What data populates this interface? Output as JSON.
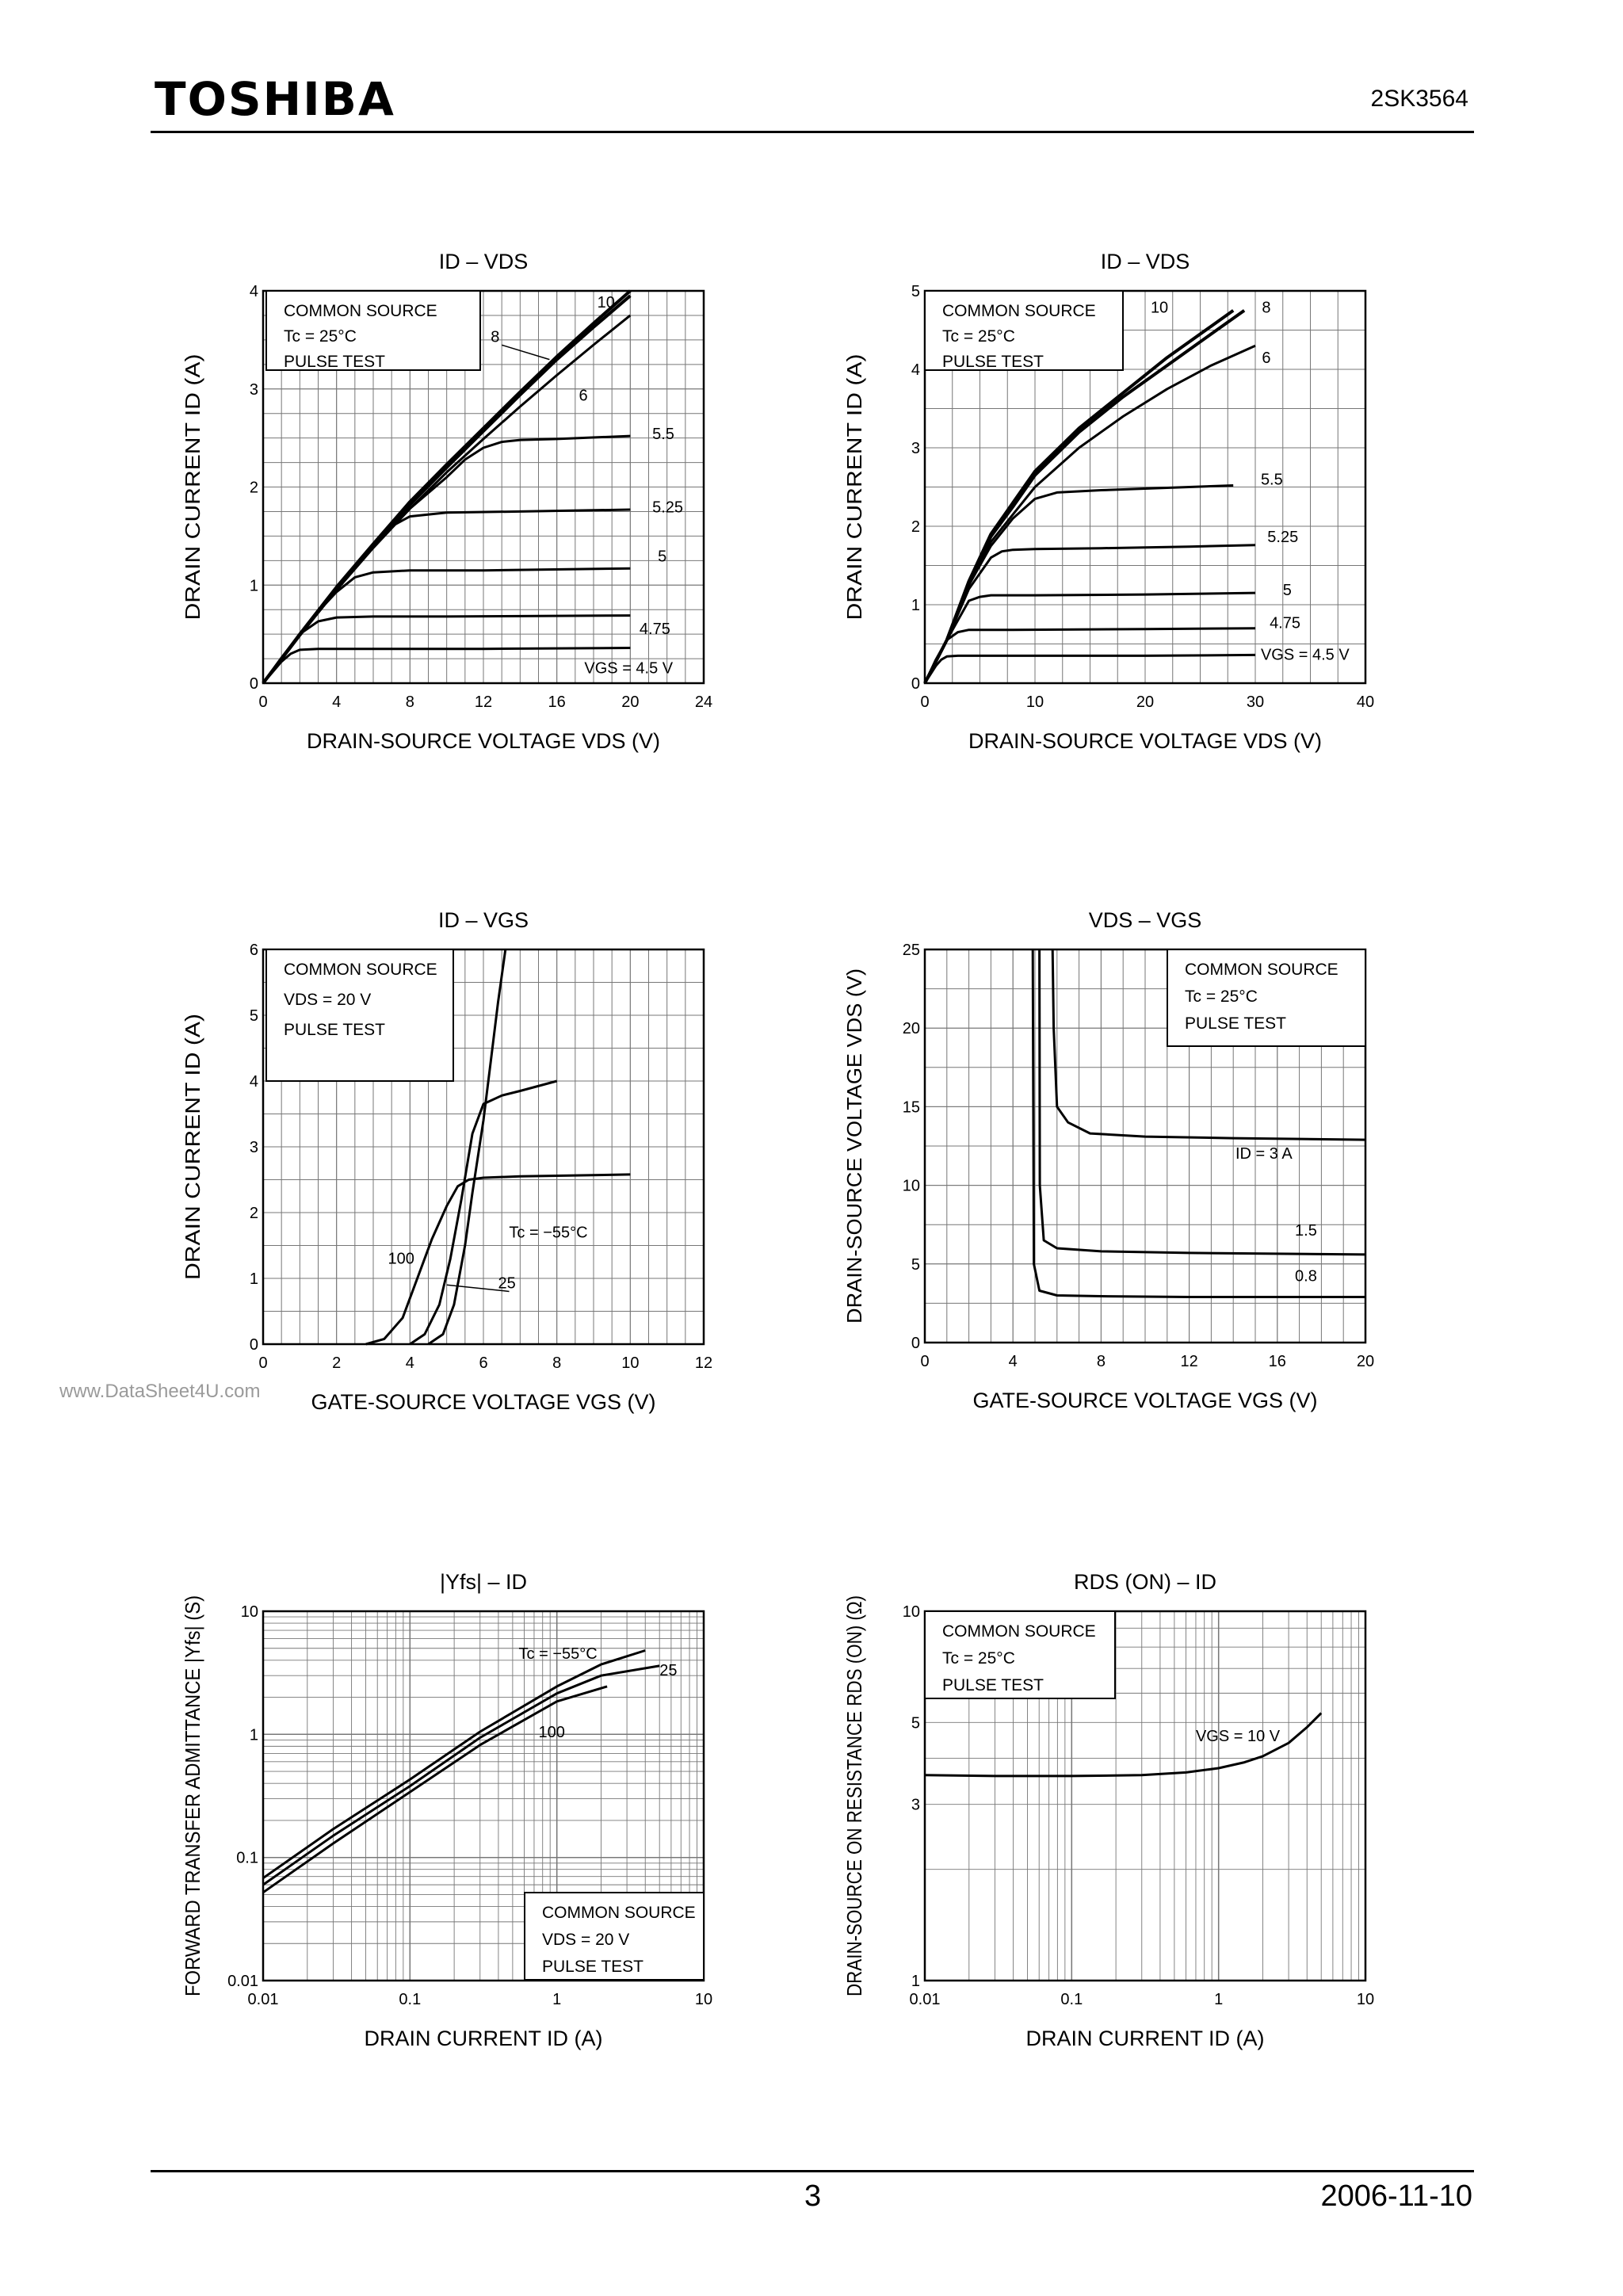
{
  "header": {
    "brand": "TOSHIBA",
    "part_number": "2SK3564"
  },
  "footer": {
    "page_number": "3",
    "date": "2006-11-10"
  },
  "watermark": "www.DataSheet4U.com",
  "chart_data": [
    {
      "type": "line",
      "title": "ID – VDS",
      "xlabel": "DRAIN-SOURCE VOLTAGE   VDS   (V)",
      "ylabel": "DRAIN CURRENT   ID   (A)",
      "xlim": [
        0,
        24
      ],
      "ylim": [
        0,
        4
      ],
      "xticks": [
        0,
        4,
        8,
        12,
        16,
        20,
        24
      ],
      "yticks": [
        0,
        1,
        2,
        3,
        4
      ],
      "conditions": [
        "COMMON SOURCE",
        "Tc = 25°C",
        "PULSE TEST"
      ],
      "series": [
        {
          "name": "10",
          "x": [
            0,
            2,
            4,
            6,
            8,
            10,
            12,
            14,
            16,
            18,
            20
          ],
          "y": [
            0,
            0.5,
            0.98,
            1.42,
            1.85,
            2.23,
            2.6,
            2.97,
            3.33,
            3.67,
            4.0
          ]
        },
        {
          "name": "8",
          "x": [
            0,
            2,
            4,
            6,
            8,
            10,
            12,
            14,
            16,
            18,
            20
          ],
          "y": [
            0,
            0.49,
            0.96,
            1.4,
            1.82,
            2.2,
            2.57,
            2.94,
            3.3,
            3.63,
            3.95
          ]
        },
        {
          "name": "6",
          "x": [
            0,
            2,
            4,
            6,
            8,
            10,
            12,
            14,
            16,
            18,
            20
          ],
          "y": [
            0,
            0.49,
            0.95,
            1.38,
            1.78,
            2.15,
            2.49,
            2.82,
            3.14,
            3.45,
            3.75
          ]
        },
        {
          "name": "5.5",
          "x": [
            0,
            2,
            4,
            6,
            8,
            10,
            11,
            12,
            13,
            14,
            16,
            20
          ],
          "y": [
            0,
            0.49,
            0.95,
            1.38,
            1.78,
            2.1,
            2.28,
            2.4,
            2.46,
            2.48,
            2.49,
            2.52
          ]
        },
        {
          "name": "5.25",
          "x": [
            0,
            2,
            4,
            5,
            6,
            7,
            8,
            10,
            14,
            20
          ],
          "y": [
            0,
            0.49,
            0.95,
            1.17,
            1.42,
            1.6,
            1.7,
            1.74,
            1.75,
            1.77
          ]
        },
        {
          "name": "5",
          "x": [
            0,
            2,
            3,
            4,
            5,
            6,
            8,
            12,
            20
          ],
          "y": [
            0,
            0.49,
            0.73,
            0.93,
            1.08,
            1.13,
            1.15,
            1.15,
            1.17
          ]
        },
        {
          "name": "4.75",
          "x": [
            0,
            1,
            2,
            3,
            4,
            6,
            10,
            20
          ],
          "y": [
            0,
            0.26,
            0.5,
            0.63,
            0.67,
            0.68,
            0.68,
            0.69
          ]
        },
        {
          "name": "VGS = 4.5 V",
          "x": [
            0,
            1,
            1.5,
            2,
            3,
            6,
            12,
            20
          ],
          "y": [
            0,
            0.22,
            0.3,
            0.34,
            0.35,
            0.35,
            0.35,
            0.36
          ]
        }
      ]
    },
    {
      "type": "line",
      "title": "ID – VDS",
      "xlabel": "DRAIN-SOURCE VOLTAGE   VDS   (V)",
      "ylabel": "DRAIN CURRENT   ID   (A)",
      "xlim": [
        0,
        40
      ],
      "ylim": [
        0,
        5
      ],
      "xticks": [
        0,
        10,
        20,
        30,
        40
      ],
      "yticks": [
        0,
        1,
        2,
        3,
        4,
        5
      ],
      "conditions": [
        "COMMON SOURCE",
        "Tc = 25°C",
        "PULSE TEST"
      ],
      "series": [
        {
          "name": "10",
          "x": [
            0,
            2,
            4,
            6,
            8,
            10,
            14,
            18,
            22,
            26,
            28
          ],
          "y": [
            0,
            0.55,
            1.3,
            1.9,
            2.3,
            2.7,
            3.25,
            3.7,
            4.15,
            4.55,
            4.75
          ]
        },
        {
          "name": "8",
          "x": [
            0,
            2,
            4,
            6,
            8,
            10,
            14,
            18,
            22,
            26,
            29
          ],
          "y": [
            0,
            0.55,
            1.28,
            1.87,
            2.25,
            2.65,
            3.2,
            3.65,
            4.05,
            4.45,
            4.75
          ]
        },
        {
          "name": "6",
          "x": [
            0,
            2,
            4,
            6,
            8,
            10,
            14,
            18,
            22,
            26,
            30
          ],
          "y": [
            0,
            0.55,
            1.25,
            1.8,
            2.15,
            2.5,
            3.0,
            3.4,
            3.75,
            4.05,
            4.3
          ]
        },
        {
          "name": "5.5",
          "x": [
            0,
            2,
            4,
            6,
            8,
            10,
            12,
            16,
            20,
            28
          ],
          "y": [
            0,
            0.55,
            1.25,
            1.75,
            2.1,
            2.35,
            2.43,
            2.46,
            2.48,
            2.52
          ]
        },
        {
          "name": "5.25",
          "x": [
            0,
            2,
            4,
            6,
            7,
            8,
            10,
            16,
            24,
            30
          ],
          "y": [
            0,
            0.55,
            1.2,
            1.6,
            1.68,
            1.7,
            1.71,
            1.72,
            1.74,
            1.76
          ]
        },
        {
          "name": "5",
          "x": [
            0,
            2,
            4,
            5,
            6,
            10,
            20,
            30
          ],
          "y": [
            0,
            0.55,
            1.05,
            1.1,
            1.12,
            1.12,
            1.13,
            1.15
          ]
        },
        {
          "name": "4.75",
          "x": [
            0,
            1,
            2,
            3,
            4,
            8,
            20,
            30
          ],
          "y": [
            0,
            0.3,
            0.55,
            0.65,
            0.68,
            0.68,
            0.69,
            0.7
          ]
        },
        {
          "name": "VGS = 4.5 V",
          "x": [
            0,
            1,
            1.5,
            2,
            3,
            8,
            20,
            30
          ],
          "y": [
            0,
            0.22,
            0.3,
            0.34,
            0.35,
            0.35,
            0.35,
            0.36
          ]
        }
      ]
    },
    {
      "type": "line",
      "title": "ID – VGS",
      "xlabel": "GATE-SOURCE VOLTAGE   VGS   (V)",
      "ylabel": "DRAIN CURRENT   ID   (A)",
      "xlim": [
        0,
        12
      ],
      "ylim": [
        0,
        6
      ],
      "xticks": [
        0,
        2,
        4,
        6,
        8,
        10,
        12
      ],
      "yticks": [
        0,
        1,
        2,
        3,
        4,
        5,
        6
      ],
      "conditions": [
        "COMMON SOURCE",
        "VDS = 20 V",
        "PULSE TEST"
      ],
      "series": [
        {
          "name": "Tc = −55°C",
          "x": [
            4.5,
            4.9,
            5.2,
            5.5,
            5.7,
            6.0,
            6.2,
            6.4,
            6.6
          ],
          "y": [
            0,
            0.15,
            0.6,
            1.5,
            2.3,
            3.4,
            4.3,
            5.2,
            6.0
          ]
        },
        {
          "name": "25",
          "x": [
            4.0,
            4.4,
            4.8,
            5.1,
            5.4,
            5.7,
            6.0,
            6.5,
            7.0,
            8.0
          ],
          "y": [
            0,
            0.15,
            0.6,
            1.3,
            2.2,
            3.2,
            3.65,
            3.78,
            3.85,
            4.0
          ]
        },
        {
          "name": "100",
          "x": [
            2.8,
            3.3,
            3.8,
            4.2,
            4.6,
            5.0,
            5.3,
            5.6,
            6.0,
            7.0,
            8.0,
            10.0
          ],
          "y": [
            0,
            0.08,
            0.4,
            1.0,
            1.6,
            2.1,
            2.4,
            2.5,
            2.53,
            2.55,
            2.56,
            2.58
          ]
        }
      ],
      "annotations": [
        "Tc = −55°C",
        "100",
        "25"
      ]
    },
    {
      "type": "line",
      "title": "VDS – VGS",
      "xlabel": "GATE-SOURCE VOLTAGE   VGS   (V)",
      "ylabel": "DRAIN-SOURCE VOLTAGE   VDS   (V)",
      "xlim": [
        0,
        20
      ],
      "ylim": [
        0,
        25
      ],
      "xticks": [
        0,
        4,
        8,
        12,
        16,
        20
      ],
      "yticks": [
        0,
        5,
        10,
        15,
        20,
        25
      ],
      "conditions": [
        "COMMON SOURCE",
        "Tc = 25°C",
        "PULSE TEST"
      ],
      "series": [
        {
          "name": "ID = 3 A",
          "x": [
            5.8,
            5.85,
            6.0,
            6.5,
            7.5,
            10,
            14,
            20
          ],
          "y": [
            25,
            20,
            15,
            14.0,
            13.3,
            13.1,
            13.0,
            12.9
          ]
        },
        {
          "name": "1.5",
          "x": [
            5.2,
            5.22,
            5.4,
            6.0,
            8,
            12,
            20
          ],
          "y": [
            25,
            10,
            6.5,
            6.0,
            5.8,
            5.7,
            5.6
          ]
        },
        {
          "name": "0.8",
          "x": [
            4.9,
            4.95,
            5.2,
            6.0,
            8,
            12,
            20
          ],
          "y": [
            25,
            5,
            3.3,
            3.0,
            2.95,
            2.9,
            2.9
          ]
        }
      ]
    },
    {
      "type": "line",
      "title": "|Yfs| – ID",
      "xlabel": "DRAIN CURRENT   ID   (A)",
      "ylabel": "FORWARD TRANSFER ADMITTANCE   |Yfs|   (S)",
      "xscale": "log",
      "yscale": "log",
      "xlim": [
        0.01,
        10
      ],
      "ylim": [
        0.01,
        10
      ],
      "xticks": [
        "0.01",
        "0.1",
        "1",
        "10"
      ],
      "yticks": [
        "0.01",
        "0.1",
        "1",
        "10"
      ],
      "conditions": [
        "COMMON SOURCE",
        "VDS = 20 V",
        "PULSE TEST"
      ],
      "series": [
        {
          "name": "Tc = −55°C",
          "x": [
            0.01,
            0.03,
            0.1,
            0.3,
            1,
            2,
            4
          ],
          "y": [
            0.068,
            0.17,
            0.43,
            1.05,
            2.45,
            3.7,
            4.8
          ]
        },
        {
          "name": "25",
          "x": [
            0.01,
            0.03,
            0.1,
            0.3,
            1,
            2,
            5
          ],
          "y": [
            0.06,
            0.15,
            0.38,
            0.94,
            2.15,
            3.0,
            3.6
          ]
        },
        {
          "name": "100",
          "x": [
            0.01,
            0.03,
            0.1,
            0.3,
            1,
            2.2
          ],
          "y": [
            0.052,
            0.13,
            0.34,
            0.82,
            1.85,
            2.45
          ]
        }
      ],
      "annotations": [
        "Tc = −55°C",
        "25",
        "100"
      ]
    },
    {
      "type": "line",
      "title": "RDS (ON) – ID",
      "xlabel": "DRAIN CURRENT   ID   (A)",
      "ylabel": "DRAIN-SOURCE ON RESISTANCE   RDS (ON)   (Ω)",
      "xscale": "log",
      "yscale": "log",
      "xlim": [
        0.01,
        10
      ],
      "ylim": [
        1,
        10
      ],
      "xticks": [
        "0.01",
        "0.1",
        "1",
        "10"
      ],
      "yticks": [
        "1",
        "3",
        "5",
        "10"
      ],
      "conditions": [
        "COMMON SOURCE",
        "Tc = 25°C",
        "PULSE TEST"
      ],
      "series": [
        {
          "name": "VGS = 10 V",
          "x": [
            0.01,
            0.03,
            0.1,
            0.3,
            0.6,
            1,
            1.5,
            2,
            3,
            4,
            5
          ],
          "y": [
            3.6,
            3.58,
            3.58,
            3.6,
            3.66,
            3.76,
            3.9,
            4.05,
            4.4,
            4.85,
            5.3
          ]
        }
      ]
    }
  ]
}
